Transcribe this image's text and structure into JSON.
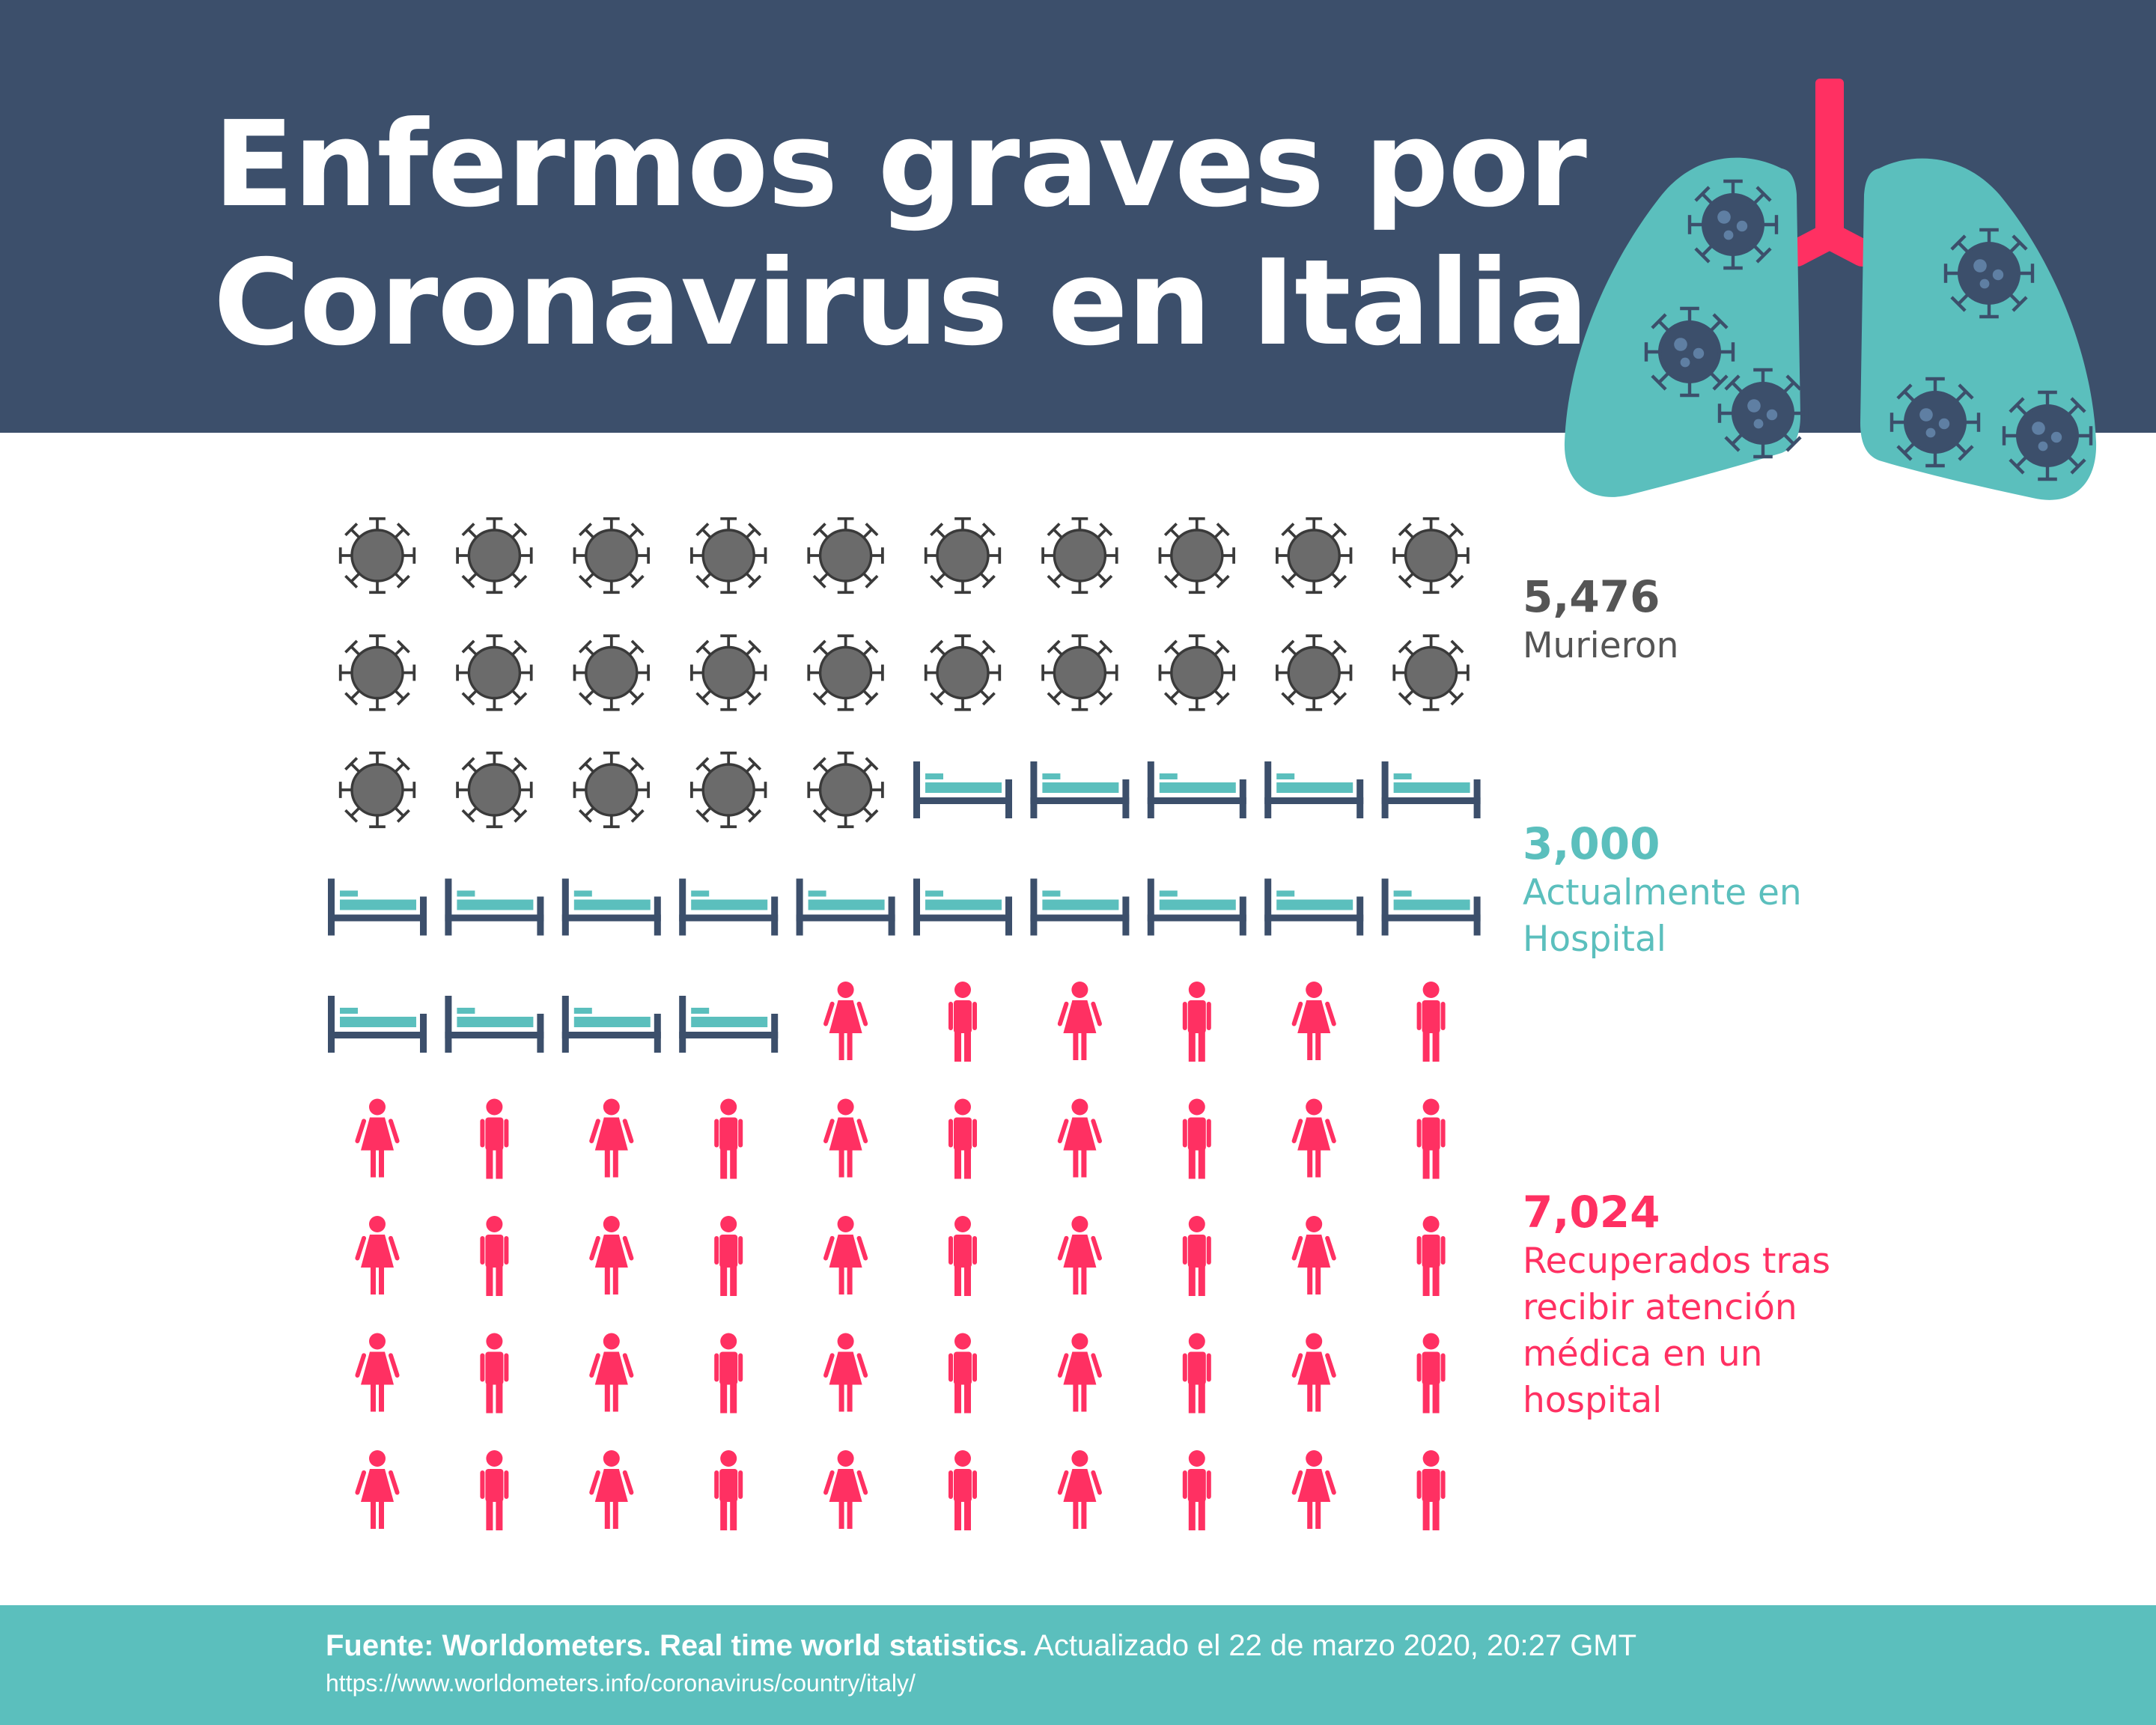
{
  "title": {
    "line1": "Enfermos graves por",
    "line2": "Coronavirus en Italia"
  },
  "colors": {
    "header_bg": "#3c4f6b",
    "virus": "#6b6b6b",
    "bed_frame": "#3c4f6b",
    "bed_mattress": "#5bbfbd",
    "person": "#ff3062",
    "footer_bg": "#5bbfbd",
    "lung": "#5bbfbd",
    "trachea": "#ff3062"
  },
  "stats": {
    "deaths": {
      "value": "5,476",
      "label": "Murieron"
    },
    "hospital": {
      "value": "3,000",
      "label": "Actualmente en Hospital"
    },
    "recovered": {
      "value": "7,024",
      "label": "Recuperados tras recibir atención médica en un hospital"
    }
  },
  "footer": {
    "source": "Fuente: Worldometers. Real time world statistics.",
    "updated": "Actualizado el 22 de marzo 2020, 20:27 GMT",
    "url": "https://www.worldometers.info/coronavirus/country/italy/"
  },
  "chart_data": {
    "type": "pictogram",
    "grid": {
      "columns": 10,
      "rows": 9
    },
    "series": [
      {
        "name": "Murieron",
        "value": 5476,
        "icon": "virus-icon",
        "icons": 25
      },
      {
        "name": "Actualmente en Hospital",
        "value": 3000,
        "icon": "bed-icon",
        "icons": 19
      },
      {
        "name": "Recuperados tras recibir atención médica en un hospital",
        "value": 7024,
        "icon": "person-icon",
        "icons": 46
      }
    ]
  }
}
